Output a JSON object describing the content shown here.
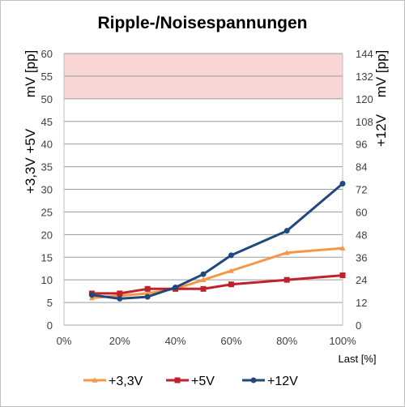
{
  "chart_data": {
    "type": "line",
    "title": "Ripple-/Noisespannungen",
    "xlabel": "Last [%]",
    "x_ticks": [
      "0%",
      "20%",
      "40%",
      "60%",
      "80%",
      "100%"
    ],
    "xlim": [
      0,
      100
    ],
    "y_left": {
      "label_lines": [
        "+3,3V +5V",
        "mV [pp]"
      ],
      "ylim": [
        0,
        60
      ],
      "ticks": [
        "0",
        "5",
        "10",
        "15",
        "20",
        "25",
        "30",
        "35",
        "40",
        "45",
        "50",
        "55",
        "60"
      ]
    },
    "y_right": {
      "label_lines": [
        "+12V",
        "mV [pp]"
      ],
      "ylim": [
        0,
        144
      ],
      "ticks": [
        "0",
        "12",
        "24",
        "36",
        "48",
        "60",
        "72",
        "84",
        "96",
        "108",
        "120",
        "132",
        "144"
      ]
    },
    "limit_band": {
      "from": 50,
      "to": 60,
      "color": "#f8d6d6"
    },
    "grid": true,
    "legend_position": "bottom",
    "series": [
      {
        "name": "+3,3V",
        "axis": "left",
        "color": "#f79646",
        "marker": "triangle",
        "x": [
          10,
          20,
          30,
          40,
          50,
          60,
          80,
          100
        ],
        "y": [
          6,
          6.5,
          7,
          8,
          10,
          12,
          16,
          17
        ]
      },
      {
        "name": "+5V",
        "axis": "left",
        "color": "#c0222b",
        "marker": "square",
        "x": [
          10,
          20,
          30,
          40,
          50,
          60,
          80,
          100
        ],
        "y": [
          7,
          7,
          8,
          8,
          8,
          9,
          10,
          11
        ]
      },
      {
        "name": "+12V",
        "axis": "right",
        "color": "#1f497d",
        "marker": "circle",
        "x": [
          10,
          20,
          30,
          40,
          50,
          60,
          80,
          100
        ],
        "y": [
          16,
          14,
          15,
          20,
          27,
          37,
          50,
          75
        ]
      }
    ]
  }
}
